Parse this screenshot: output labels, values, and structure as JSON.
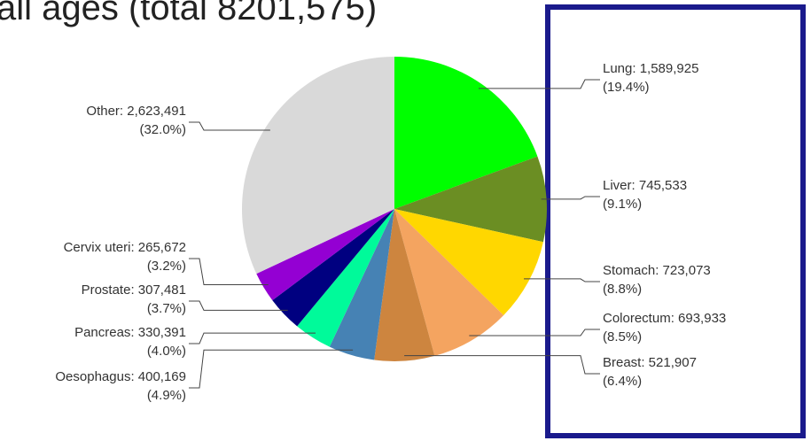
{
  "chart_data": {
    "type": "pie",
    "title": "all ages (total 8201,575)",
    "value_labels": [
      "Lung: 1,589,925",
      "Liver: 745,533",
      "Stomach: 723,073",
      "Colorectum: 693,933",
      "Breast: 521,907",
      "Oesophagus: 400,169",
      "Pancreas: 330,391",
      "Prostate: 307,481",
      "Cervix uteri: 265,672",
      "Other: 2,623,491"
    ],
    "values": [
      1589925,
      745533,
      723073,
      693933,
      521907,
      400169,
      330391,
      307481,
      265672,
      2623491
    ],
    "percentages": [
      19.4,
      9.1,
      8.8,
      8.5,
      6.4,
      4.9,
      4.0,
      3.7,
      3.2,
      32.0
    ],
    "percent_labels": [
      "(19.4%)",
      "(9.1%)",
      "(8.8%)",
      "(8.5%)",
      "(6.4%)",
      "(4.9%)",
      "(4.0%)",
      "(3.7%)",
      "(3.2%)",
      "(32.0%)"
    ],
    "colors": [
      "#00ff00",
      "#6b8e23",
      "#ffd700",
      "#f4a460",
      "#cd853f",
      "#4682b4",
      "#00fa9a",
      "#000080",
      "#9400d3",
      "#d9d9d9"
    ]
  }
}
